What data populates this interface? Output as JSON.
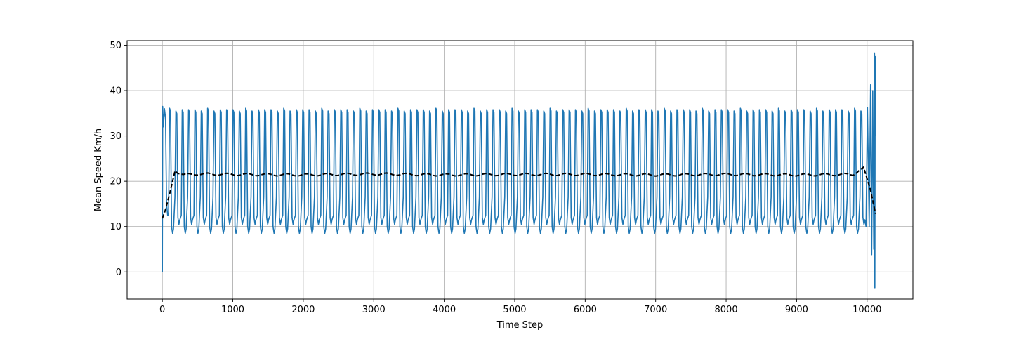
{
  "chart_data": {
    "type": "line",
    "title": "",
    "xlabel": "Time Step",
    "ylabel": "Mean Speed Km/h",
    "xlim": [
      -500,
      10650
    ],
    "ylim": [
      -6,
      51
    ],
    "x_ticks": [
      0,
      1000,
      2000,
      3000,
      4000,
      5000,
      6000,
      7000,
      8000,
      9000,
      10000
    ],
    "y_ticks": [
      0,
      10,
      20,
      30,
      40,
      50
    ],
    "grid": true,
    "legend": "none",
    "series": [
      {
        "style": "solid",
        "color": "#1f77b4",
        "x_range": [
          0,
          10120
        ],
        "oscillation": {
          "period": 90,
          "peak_values": [
            35.8,
            35.5
          ],
          "trough_values": [
            8.5,
            10.5
          ],
          "mid_level_values": [
            12.5,
            16.5
          ]
        },
        "segments": [
          {
            "x": [
              0,
              5,
              15,
              30,
              45,
              60,
              75
            ],
            "y": [
              0,
              36.5,
              32,
              36,
              34,
              15,
              12.5
            ]
          },
          {
            "x": [
              9985,
              10005,
              10030,
              10050,
              10065,
              10080,
              10095,
              10105,
              10110,
              10115,
              10120
            ],
            "y": [
              10,
              36.3,
              10,
              41.3,
              3.8,
              40,
              5,
              48.3,
              -3.5,
              47.5,
              30
            ]
          }
        ]
      },
      {
        "style": "dashed",
        "color": "#000000",
        "x": [
          0,
          40,
          100,
          180,
          300,
          500,
          1000,
          2000,
          3000,
          4000,
          5000,
          6000,
          7000,
          8000,
          9000,
          9800,
          9950,
          10050,
          10120
        ],
        "y": [
          11.8,
          13.5,
          17,
          22.3,
          21.4,
          21.6,
          21.5,
          21.4,
          21.6,
          21.4,
          21.5,
          21.5,
          21.4,
          21.5,
          21.4,
          21.5,
          23.1,
          18,
          12.8
        ],
        "ripple": 0.25
      }
    ]
  }
}
